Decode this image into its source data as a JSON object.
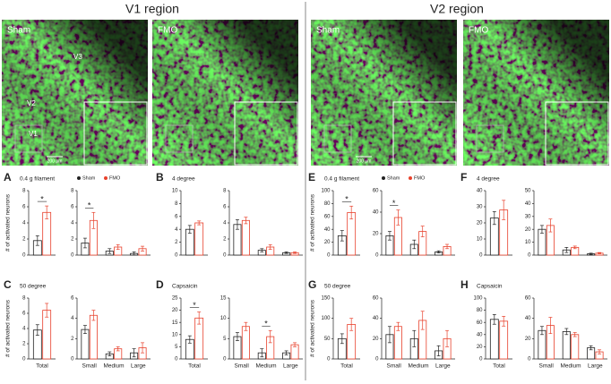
{
  "header": {
    "left_title": "V1 region",
    "right_title": "V2 region"
  },
  "images": [
    {
      "label": "Sham",
      "annotations": [
        "V3",
        "V2",
        "V1"
      ],
      "scale_bar": "200 μm"
    },
    {
      "label": "FMO"
    },
    {
      "label": "Sham",
      "scale_bar": "200 μm"
    },
    {
      "label": "FMO"
    }
  ],
  "chart_data": [
    {
      "type": "bar",
      "panel": "A",
      "title": "0.4 g filament",
      "y_label": "# of activated neurons",
      "categories": [
        null
      ],
      "ylim": [
        0,
        8
      ],
      "yticks": [
        0,
        2,
        4,
        6,
        8
      ],
      "significance": [
        "*"
      ],
      "series": [
        {
          "color": "#222222",
          "values": [
            1.8
          ],
          "errors": [
            0.6
          ]
        },
        {
          "color": "#e8412c",
          "values": [
            5.3
          ],
          "errors": [
            0.8
          ]
        }
      ]
    },
    {
      "type": "bar",
      "legend": true,
      "categories": [
        null,
        null,
        null
      ],
      "ylim": [
        0,
        8
      ],
      "yticks": [
        0,
        2,
        4,
        6,
        8
      ],
      "significance": [
        "*",
        null,
        null
      ],
      "series": [
        {
          "name": "Sham",
          "color": "#222222",
          "values": [
            1.5,
            0.5,
            0.2
          ],
          "errors": [
            0.6,
            0.3,
            0.2
          ]
        },
        {
          "name": "FMO",
          "color": "#e8412c",
          "values": [
            4.3,
            1.0,
            0.8
          ],
          "errors": [
            1.0,
            0.3,
            0.3
          ]
        }
      ]
    },
    {
      "type": "bar",
      "panel": "B",
      "title": "4 degree",
      "categories": [
        null
      ],
      "ylim": [
        0,
        10
      ],
      "yticks": [
        0,
        2,
        4,
        6,
        8,
        10
      ],
      "significance": [
        null
      ],
      "series": [
        {
          "color": "#222222",
          "values": [
            4.0
          ],
          "errors": [
            0.6
          ]
        },
        {
          "color": "#e8412c",
          "values": [
            5.0
          ],
          "errors": [
            0.3
          ]
        }
      ]
    },
    {
      "type": "bar",
      "categories": [
        null,
        null,
        null
      ],
      "ylim": [
        0,
        8
      ],
      "yticks": [
        0,
        2,
        4,
        6,
        8
      ],
      "significance": [
        null,
        null,
        null
      ],
      "series": [
        {
          "color": "#222222",
          "values": [
            3.8,
            0.6,
            0.3
          ],
          "errors": [
            0.6,
            0.2,
            0.1
          ]
        },
        {
          "color": "#e8412c",
          "values": [
            4.3,
            1.0,
            0.3
          ],
          "errors": [
            0.4,
            0.3,
            0.1
          ]
        }
      ]
    },
    {
      "type": "bar",
      "panel": "C",
      "title": "50 degree",
      "y_label": "# of activated neurons",
      "categories": [
        "Total"
      ],
      "ylim": [
        0,
        8
      ],
      "yticks": [
        0,
        2,
        4,
        6,
        8
      ],
      "significance": [
        null
      ],
      "series": [
        {
          "color": "#222222",
          "values": [
            3.8
          ],
          "errors": [
            0.7
          ]
        },
        {
          "color": "#e8412c",
          "values": [
            6.4
          ],
          "errors": [
            0.9
          ]
        }
      ]
    },
    {
      "type": "bar",
      "categories": [
        "Small",
        "Medium",
        "Large"
      ],
      "ylim": [
        0,
        6
      ],
      "yticks": [
        0,
        2,
        4,
        6
      ],
      "significance": [
        null,
        null,
        null
      ],
      "series": [
        {
          "color": "#222222",
          "values": [
            2.9,
            0.5,
            0.6
          ],
          "errors": [
            0.4,
            0.2,
            0.4
          ]
        },
        {
          "color": "#e8412c",
          "values": [
            4.3,
            1.0,
            1.1
          ],
          "errors": [
            0.5,
            0.2,
            0.5
          ]
        }
      ]
    },
    {
      "type": "bar",
      "panel": "D",
      "title": "Capsaicin",
      "categories": [
        "Total"
      ],
      "ylim": [
        0,
        25
      ],
      "yticks": [
        0,
        5,
        10,
        15,
        20,
        25
      ],
      "significance": [
        "*"
      ],
      "series": [
        {
          "color": "#222222",
          "values": [
            8
          ],
          "errors": [
            1.5
          ]
        },
        {
          "color": "#e8412c",
          "values": [
            16.8
          ],
          "errors": [
            2.5
          ]
        }
      ]
    },
    {
      "type": "bar",
      "categories": [
        "Small",
        "Medium",
        "Large"
      ],
      "ylim": [
        0,
        15
      ],
      "yticks": [
        0,
        5,
        10,
        15
      ],
      "significance": [
        null,
        "*",
        null
      ],
      "series": [
        {
          "color": "#222222",
          "values": [
            5.5,
            1.5,
            1.5
          ],
          "errors": [
            1,
            1,
            0.5
          ]
        },
        {
          "color": "#e8412c",
          "values": [
            8,
            5.5,
            3.5
          ],
          "errors": [
            1,
            1.5,
            0.5
          ]
        }
      ]
    },
    {
      "type": "bar",
      "panel": "E",
      "title": "0.4 g filament",
      "y_label": "# of activated neurons",
      "categories": [
        null
      ],
      "ylim": [
        0,
        100
      ],
      "yticks": [
        0,
        20,
        40,
        60,
        80,
        100
      ],
      "significance": [
        "*"
      ],
      "series": [
        {
          "color": "#222222",
          "values": [
            30
          ],
          "errors": [
            8
          ]
        },
        {
          "color": "#e8412c",
          "values": [
            66
          ],
          "errors": [
            10
          ]
        }
      ]
    },
    {
      "type": "bar",
      "legend": true,
      "categories": [
        null,
        null,
        null
      ],
      "ylim": [
        0,
        60
      ],
      "yticks": [
        0,
        20,
        40,
        60
      ],
      "significance": [
        "*",
        null,
        null
      ],
      "series": [
        {
          "name": "Sham",
          "color": "#222222",
          "values": [
            18,
            10,
            3
          ],
          "errors": [
            4,
            4,
            1
          ]
        },
        {
          "name": "FMO",
          "color": "#e8412c",
          "values": [
            35,
            22,
            8
          ],
          "errors": [
            7,
            5,
            2
          ]
        }
      ]
    },
    {
      "type": "bar",
      "panel": "F",
      "title": "4 degree",
      "categories": [
        null
      ],
      "ylim": [
        0,
        40
      ],
      "yticks": [
        0,
        10,
        20,
        30,
        40
      ],
      "significance": [
        null
      ],
      "series": [
        {
          "color": "#222222",
          "values": [
            23
          ],
          "errors": [
            4
          ]
        },
        {
          "color": "#e8412c",
          "values": [
            28
          ],
          "errors": [
            6
          ]
        }
      ]
    },
    {
      "type": "bar",
      "categories": [
        null,
        null,
        null
      ],
      "ylim": [
        0,
        50
      ],
      "yticks": [
        0,
        10,
        20,
        30,
        40,
        50
      ],
      "significance": [
        null,
        null,
        null
      ],
      "series": [
        {
          "color": "#222222",
          "values": [
            20,
            4,
            1
          ],
          "errors": [
            3,
            2,
            0.5
          ]
        },
        {
          "color": "#e8412c",
          "values": [
            23,
            6,
            1.5
          ],
          "errors": [
            5,
            1,
            0.5
          ]
        }
      ]
    },
    {
      "type": "bar",
      "panel": "G",
      "title": "50 degree",
      "y_label": "# of activated neurons",
      "categories": [
        "Total"
      ],
      "ylim": [
        0,
        150
      ],
      "yticks": [
        0,
        50,
        100,
        150
      ],
      "significance": [
        null
      ],
      "series": [
        {
          "color": "#222222",
          "values": [
            50
          ],
          "errors": [
            12
          ]
        },
        {
          "color": "#e8412c",
          "values": [
            85
          ],
          "errors": [
            15
          ]
        }
      ]
    },
    {
      "type": "bar",
      "categories": [
        "Small",
        "Medium",
        "Large"
      ],
      "ylim": [
        0,
        60
      ],
      "yticks": [
        0,
        20,
        40,
        60
      ],
      "significance": [
        null,
        null,
        null
      ],
      "series": [
        {
          "color": "#222222",
          "values": [
            24,
            20,
            8
          ],
          "errors": [
            8,
            8,
            5
          ]
        },
        {
          "color": "#e8412c",
          "values": [
            32,
            38,
            20
          ],
          "errors": [
            4,
            9,
            8
          ]
        }
      ]
    },
    {
      "type": "bar",
      "panel": "H",
      "title": "Capsaicin",
      "categories": [
        "Total"
      ],
      "ylim": [
        0,
        100
      ],
      "yticks": [
        0,
        20,
        40,
        60,
        80,
        100
      ],
      "significance": [
        null
      ],
      "series": [
        {
          "color": "#222222",
          "values": [
            65
          ],
          "errors": [
            8
          ]
        },
        {
          "color": "#e8412c",
          "values": [
            62
          ],
          "errors": [
            8
          ]
        }
      ]
    },
    {
      "type": "bar",
      "categories": [
        "Small",
        "Medium",
        "Large"
      ],
      "ylim": [
        0,
        60
      ],
      "yticks": [
        0,
        20,
        40,
        60
      ],
      "significance": [
        null,
        null,
        null
      ],
      "series": [
        {
          "color": "#222222",
          "values": [
            28,
            27,
            11
          ],
          "errors": [
            4,
            3,
            2
          ]
        },
        {
          "color": "#e8412c",
          "values": [
            33,
            24,
            7
          ],
          "errors": [
            8,
            2,
            2
          ]
        }
      ]
    }
  ]
}
